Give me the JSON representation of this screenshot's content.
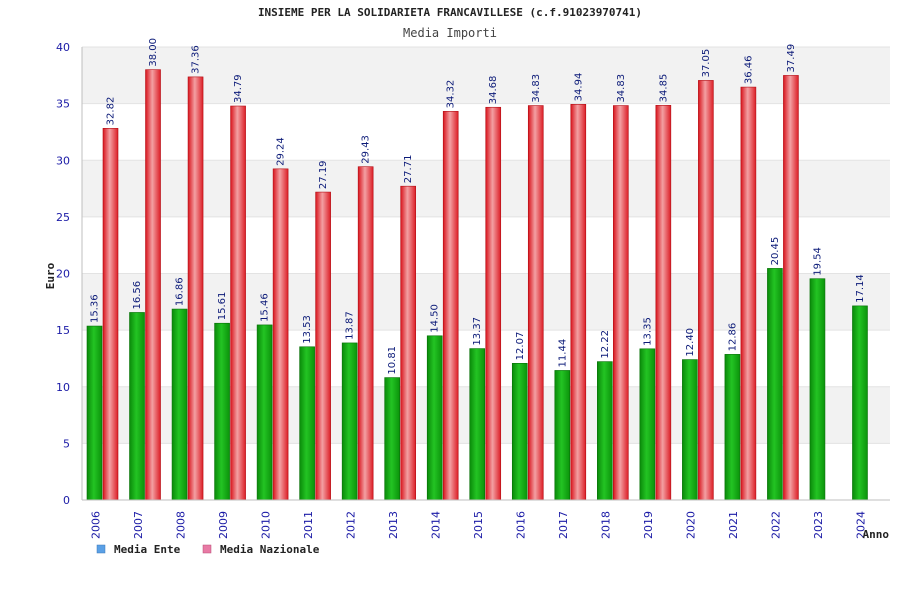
{
  "chart_data": {
    "type": "bar",
    "title": "INSIEME PER LA SOLIDARIETA FRANCAVILLESE (c.f.91023970741)",
    "subtitle": "Media Importi",
    "xlabel": "Anno",
    "ylabel": "Euro",
    "ylim": [
      0,
      40
    ],
    "yticks": [
      "0",
      "5",
      "10",
      "15",
      "20",
      "25",
      "30",
      "35",
      "40"
    ],
    "categories": [
      "2006",
      "2007",
      "2008",
      "2009",
      "2010",
      "2011",
      "2012",
      "2013",
      "2014",
      "2015",
      "2016",
      "2017",
      "2018",
      "2019",
      "2020",
      "2021",
      "2022",
      "2023",
      "2024"
    ],
    "series": [
      {
        "name": "Media Ente",
        "color": "#1fb51f",
        "values": [
          15.36,
          16.56,
          16.86,
          15.61,
          15.46,
          13.53,
          13.87,
          10.81,
          14.5,
          13.37,
          12.07,
          11.44,
          12.22,
          13.35,
          12.4,
          12.86,
          20.45,
          19.54,
          17.14
        ],
        "labels": [
          "15.36",
          "16.56",
          "16.86",
          "15.61",
          "15.46",
          "13.53",
          "13.87",
          "10.81",
          "14.50",
          "13.37",
          "12.07",
          "11.44",
          "12.22",
          "13.35",
          "12.40",
          "12.86",
          "20.45",
          "19.54",
          "17.14"
        ]
      },
      {
        "name": "Media Nazionale",
        "color": "#e8333a",
        "values": [
          32.82,
          38.0,
          37.36,
          34.79,
          29.24,
          27.19,
          29.43,
          27.71,
          34.32,
          34.68,
          34.83,
          34.94,
          34.83,
          34.85,
          37.05,
          36.46,
          37.49,
          null,
          null
        ],
        "labels": [
          "32.82",
          "38.00",
          "37.36",
          "34.79",
          "29.24",
          "27.19",
          "29.43",
          "27.71",
          "34.32",
          "34.68",
          "34.83",
          "34.94",
          "34.83",
          "34.85",
          "37.05",
          "36.46",
          "37.49",
          "",
          ""
        ]
      }
    ],
    "legend": {
      "placement": "bottom-left",
      "items": [
        {
          "label": "Media Ente",
          "swatch_color": "#5aa0e6"
        },
        {
          "label": "Media Nazionale",
          "swatch_color": "#e87aa5"
        }
      ]
    },
    "grid": true,
    "band_colors": [
      "#f2f2f2",
      "#ffffff"
    ]
  }
}
